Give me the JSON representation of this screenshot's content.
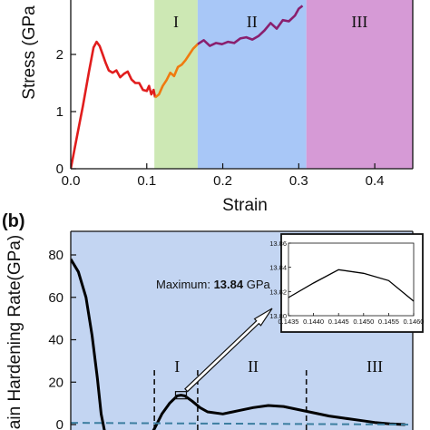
{
  "chart_data": [
    {
      "panel_label": "",
      "type": "line",
      "xlabel": "Strain",
      "ylabel": "Stress (GPa",
      "xlim": [
        0.0,
        0.45
      ],
      "ylim": [
        0,
        3.0
      ],
      "x_ticks": [
        "0.0",
        "0.1",
        "0.2",
        "0.3",
        "0.4"
      ],
      "y_ticks": [
        "0",
        "1",
        "2"
      ],
      "regions": [
        {
          "label": "I",
          "x_start": 0.11,
          "x_end": 0.167,
          "color": "#cde8b4"
        },
        {
          "label": "II",
          "x_start": 0.167,
          "x_end": 0.31,
          "color": "#a8c7f7"
        },
        {
          "label": "III",
          "x_start": 0.31,
          "x_end": 0.45,
          "color": "#d69ad6"
        }
      ],
      "series": [
        {
          "color": "#e11d1d",
          "x": [
            0.0,
            0.008,
            0.016,
            0.024,
            0.03,
            0.034,
            0.038,
            0.042,
            0.046,
            0.05,
            0.055,
            0.06,
            0.065,
            0.07,
            0.075,
            0.08,
            0.085,
            0.09,
            0.095,
            0.1,
            0.103,
            0.106,
            0.109,
            0.111
          ],
          "values": [
            0.0,
            0.55,
            1.1,
            1.7,
            2.12,
            2.22,
            2.15,
            2.0,
            1.85,
            1.72,
            1.68,
            1.72,
            1.6,
            1.66,
            1.7,
            1.56,
            1.5,
            1.5,
            1.38,
            1.36,
            1.45,
            1.3,
            1.38,
            1.25
          ]
        },
        {
          "color": "#f07a0f",
          "x": [
            0.111,
            0.116,
            0.121,
            0.126,
            0.131,
            0.136,
            0.141,
            0.146,
            0.151,
            0.156,
            0.161,
            0.167
          ],
          "values": [
            1.25,
            1.3,
            1.45,
            1.55,
            1.68,
            1.62,
            1.78,
            1.82,
            1.9,
            2.0,
            2.1,
            2.18
          ]
        },
        {
          "color": "#8a1f6e",
          "x": [
            0.167,
            0.175,
            0.183,
            0.191,
            0.199,
            0.207,
            0.215,
            0.223,
            0.231,
            0.239,
            0.247,
            0.255,
            0.263,
            0.271,
            0.279,
            0.287,
            0.295,
            0.3,
            0.305
          ],
          "values": [
            2.18,
            2.25,
            2.15,
            2.2,
            2.18,
            2.22,
            2.2,
            2.28,
            2.3,
            2.26,
            2.32,
            2.42,
            2.55,
            2.45,
            2.6,
            2.58,
            2.68,
            2.8,
            2.85
          ]
        }
      ]
    },
    {
      "panel_label": "(b)",
      "type": "line",
      "xlabel": "",
      "ylabel": "ain Hardening Rate(GPa)",
      "xlim": [
        0.0,
        0.45
      ],
      "ylim": [
        0,
        85
      ],
      "y_ticks": [
        "0",
        "20",
        "40",
        "60",
        "80"
      ],
      "background_color": "#c3d5f2",
      "zone_labels": [
        {
          "label": "I",
          "x": 0.14
        },
        {
          "label": "II",
          "x": 0.24
        },
        {
          "label": "III",
          "x": 0.4
        }
      ],
      "dividers_x": [
        0.11,
        0.167,
        0.31
      ],
      "series": [
        {
          "color": "#000000",
          "x": [
            0.0,
            0.01,
            0.02,
            0.028,
            0.035,
            0.04,
            0.045,
            0.05,
            0.06,
            0.08,
            0.1,
            0.11,
            0.12,
            0.13,
            0.14,
            0.145,
            0.15,
            0.16,
            0.17,
            0.18,
            0.2,
            0.22,
            0.24,
            0.26,
            0.28,
            0.3,
            0.32,
            0.34,
            0.36,
            0.38,
            0.4,
            0.42,
            0.44
          ],
          "values": [
            78,
            72,
            60,
            42,
            22,
            5,
            -4,
            -8,
            -10,
            -10,
            -8,
            -2,
            5,
            10,
            13.5,
            13.84,
            13.5,
            11,
            8,
            6,
            5,
            6.5,
            8,
            9,
            8.5,
            7,
            5.5,
            4,
            3,
            2,
            1,
            0.3,
            0
          ]
        },
        {
          "color": "#3c7ea0",
          "dashed": true,
          "x": [
            0.0,
            0.45
          ],
          "values": [
            0.8,
            0.0
          ]
        }
      ],
      "annotation": {
        "prefix": "Maximum: ",
        "value": "13.84",
        "unit": " GPa",
        "x": 0.145,
        "y": 13.84
      },
      "inset": {
        "type": "line",
        "xlim": [
          0.1435,
          0.146
        ],
        "ylim": [
          13.8,
          13.86
        ],
        "x_ticks": [
          "0.1435",
          "0.1440",
          "0.1445",
          "0.1450",
          "0.1455",
          "0.1460"
        ],
        "y_ticks": [
          "13.80",
          "13.82",
          "13.84",
          "13.86"
        ],
        "series": [
          {
            "color": "#000000",
            "x": [
              0.1435,
              0.144,
              0.1445,
              0.145,
              0.1455,
              0.146
            ],
            "values": [
              13.815,
              13.827,
              13.838,
              13.835,
              13.829,
              13.812
            ]
          }
        ]
      }
    }
  ]
}
